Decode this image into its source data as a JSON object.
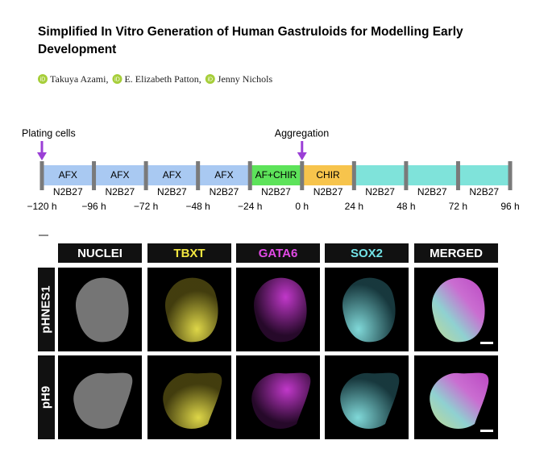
{
  "header": {
    "title": "Simplified In Vitro Generation of Human Gastruloids for Modelling Early Development",
    "authors": [
      "Takuya Azami,",
      "E. Elizabeth Patton,",
      "Jenny Nichols"
    ]
  },
  "timeline": {
    "events": [
      {
        "label": "Plating cells",
        "at": 0
      },
      {
        "label": "Aggregation",
        "at": 5
      }
    ],
    "segments": [
      {
        "label": "AFX",
        "medium": "N2B27",
        "color": "#a9c9f2"
      },
      {
        "label": "AFX",
        "medium": "N2B27",
        "color": "#a9c9f2"
      },
      {
        "label": "AFX",
        "medium": "N2B27",
        "color": "#a9c9f2"
      },
      {
        "label": "AFX",
        "medium": "N2B27",
        "color": "#a9c9f2"
      },
      {
        "label": "AF+CHIR",
        "medium": "N2B27",
        "color": "#5de35a"
      },
      {
        "label": "CHIR",
        "medium": "N2B27",
        "color": "#f7c44c"
      },
      {
        "medium": "N2B27",
        "color": "#7fe3da"
      },
      {
        "medium": "N2B27",
        "color": "#7fe3da"
      },
      {
        "medium": "N2B27",
        "color": "#7fe3da"
      }
    ],
    "times": [
      "−120 h",
      "−96 h",
      "−72 h",
      "−48 h",
      "−24 h",
      "0 h",
      "24 h",
      "48 h",
      "72 h",
      "96 h"
    ]
  },
  "panel": {
    "columns": [
      {
        "label": "NUCLEI",
        "color": "#ffffff"
      },
      {
        "label": "TBXT",
        "color": "#f2e640"
      },
      {
        "label": "GATA6",
        "color": "#e24ae6"
      },
      {
        "label": "SOX2",
        "color": "#72e2e6"
      },
      {
        "label": "MERGED",
        "color": "#ffffff"
      }
    ],
    "rows": [
      "pHNES1",
      "pH9"
    ]
  }
}
